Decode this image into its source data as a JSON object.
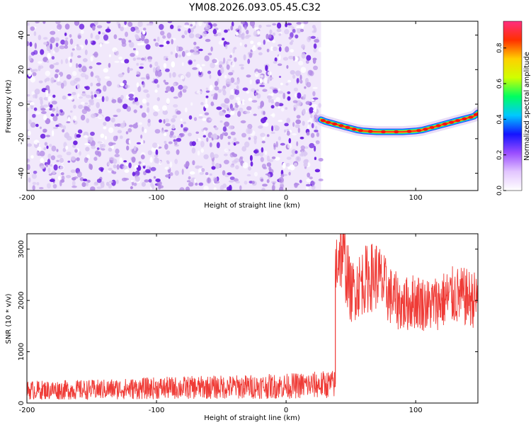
{
  "title": "YM08.2026.093.05.45.C32",
  "colors": {
    "signal": "#ef3b36",
    "noise_light": "#d9c7f2",
    "noise_mid": "#b48ce6",
    "noise_dark": "#6b1fe0",
    "frame": "#000000",
    "background": "#ffffff"
  },
  "chart_data": [
    {
      "type": "heatmap",
      "name": "spectrogram",
      "xlabel": "Height of straight line (km)",
      "ylabel": "Frequency (Hz)",
      "xlim": [
        -200,
        148
      ],
      "ylim": [
        -50,
        48
      ],
      "xticks": [
        -200,
        -100,
        0,
        100
      ],
      "yticks": [
        -40,
        -20,
        0,
        20,
        40
      ],
      "noise_region_x": [
        -200,
        27
      ],
      "ridge": {
        "x": [
          27,
          30,
          35,
          40,
          45,
          50,
          55,
          60,
          70,
          80,
          90,
          100,
          105,
          110,
          115,
          120,
          125,
          130,
          135,
          140,
          145,
          148
        ],
        "y": [
          -9,
          -10,
          -11,
          -12,
          -13,
          -14,
          -15,
          -15.5,
          -16,
          -16,
          -16,
          -15.5,
          -15,
          -14,
          -13,
          -12,
          -11,
          -10,
          -9,
          -8,
          -7,
          -5
        ]
      },
      "colorbar": {
        "label": "Normalized spectral amplitude",
        "range": [
          0.0,
          0.95
        ],
        "ticks": [
          0.0,
          0.2,
          0.4,
          0.6,
          0.8
        ],
        "tick_labels": [
          "0.0",
          "0.2",
          "0.4",
          "0.6",
          "0.8"
        ],
        "colors": [
          "#ffffff",
          "#e3c6ff",
          "#9a4dff",
          "#1414ff",
          "#00c8ff",
          "#00ff60",
          "#d0ff00",
          "#ffd000",
          "#ff3000",
          "#ff2d80"
        ]
      }
    },
    {
      "type": "line",
      "name": "snr",
      "xlabel": "Height of straight line (km)",
      "ylabel": "SNR (10 * v/v)",
      "xlim": [
        -200,
        148
      ],
      "ylim": [
        0,
        3300
      ],
      "xticks": [
        -200,
        -100,
        0,
        100
      ],
      "yticks": [
        0,
        1000,
        2000,
        3000
      ],
      "series": [
        {
          "name": "SNR",
          "segments": [
            {
              "x": [
                -200,
                -150,
                -100,
                -50,
                0,
                20,
                38
              ],
              "y": [
                250,
                260,
                290,
                310,
                330,
                350,
                370
              ]
            },
            {
              "x": [
                38,
                40,
                42,
                45,
                50,
                60,
                70,
                80,
                90,
                100,
                110,
                120,
                130,
                140,
                148
              ],
              "y": [
                2600,
                2900,
                3000,
                2800,
                2150,
                2400,
                2500,
                2100,
                1900,
                2000,
                1900,
                2000,
                2100,
                2050,
                2000
              ]
            }
          ]
        }
      ]
    }
  ]
}
